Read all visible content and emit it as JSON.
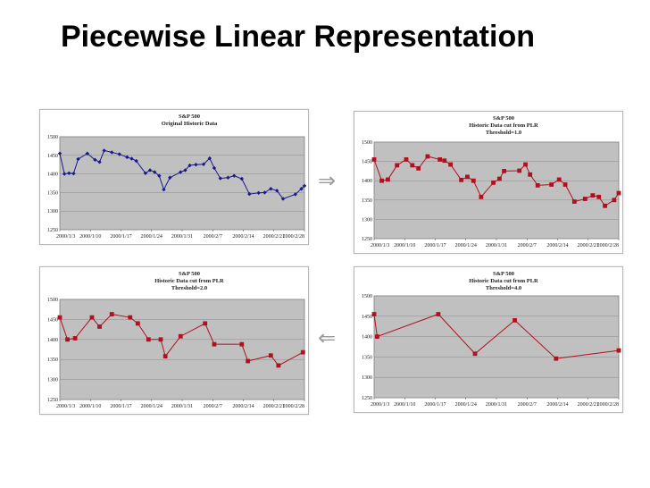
{
  "slide": {
    "title": "Piecewise Linear Representation"
  },
  "arrows": {
    "right": "⇒",
    "left": "⇐"
  },
  "chart_data": [
    {
      "type": "line",
      "title": "S&P 500",
      "subtitle": "Original Historic Data",
      "subtitle2": "",
      "categories": [
        "2000/1/3",
        "2000/1/10",
        "2000/1/17",
        "2000/1/24",
        "2000/1/31",
        "2000/2/7",
        "2000/2/14",
        "2000/2/21",
        "2000/2/28"
      ],
      "ylim": [
        1250,
        1500
      ],
      "yticks": [
        1250,
        1300,
        1350,
        1400,
        1450,
        1500
      ],
      "grid": true,
      "legend": "none",
      "series": [
        {
          "color": "#1a1a8c",
          "marker": "diamond",
          "x": [
            0,
            0.15,
            0.3,
            0.45,
            0.6,
            0.9,
            1.15,
            1.3,
            1.45,
            1.7,
            1.95,
            2.2,
            2.35,
            2.5,
            2.8,
            2.95,
            3.1,
            3.25,
            3.4,
            3.6,
            3.95,
            4.1,
            4.25,
            4.45,
            4.7,
            4.9,
            5.05,
            5.25,
            5.5,
            5.7,
            5.95,
            6.2,
            6.5,
            6.7,
            6.9,
            7.1,
            7.3,
            7.7,
            7.9,
            8.0
          ],
          "y": [
            1455,
            1400,
            1402,
            1401,
            1440,
            1455,
            1438,
            1432,
            1463,
            1458,
            1453,
            1445,
            1441,
            1435,
            1402,
            1410,
            1405,
            1395,
            1358,
            1390,
            1405,
            1410,
            1423,
            1425,
            1426,
            1442,
            1416,
            1388,
            1390,
            1395,
            1387,
            1346,
            1349,
            1350,
            1360,
            1355,
            1333,
            1345,
            1360,
            1368
          ]
        }
      ]
    },
    {
      "type": "line",
      "title": "S&P 500",
      "subtitle": "Historic  Data cut from PLR",
      "subtitle2": "Threshold=1.0",
      "categories": [
        "2000/1/3",
        "2000/1/10",
        "2000/1/17",
        "2000/1/24",
        "2000/1/31",
        "2000/2/7",
        "2000/2/14",
        "2000/2/21",
        "2000/2/28"
      ],
      "ylim": [
        1250,
        1500
      ],
      "yticks": [
        1250,
        1300,
        1350,
        1400,
        1450,
        1500
      ],
      "grid": true,
      "legend": "none",
      "series": [
        {
          "color": "#b01020",
          "marker": "square",
          "x": [
            0,
            0.25,
            0.45,
            0.75,
            1.05,
            1.25,
            1.45,
            1.75,
            2.15,
            2.3,
            2.5,
            2.85,
            3.05,
            3.25,
            3.5,
            3.9,
            4.1,
            4.25,
            4.75,
            4.95,
            5.1,
            5.35,
            5.8,
            6.05,
            6.25,
            6.55,
            6.9,
            7.15,
            7.35,
            7.55,
            7.85,
            8.0
          ],
          "y": [
            1455,
            1400,
            1403,
            1440,
            1455,
            1440,
            1432,
            1463,
            1455,
            1452,
            1442,
            1402,
            1410,
            1400,
            1358,
            1395,
            1405,
            1425,
            1426,
            1442,
            1416,
            1388,
            1390,
            1403,
            1390,
            1346,
            1353,
            1362,
            1358,
            1335,
            1350,
            1368
          ]
        }
      ]
    },
    {
      "type": "line",
      "title": "S&P 500",
      "subtitle": "Historic  Data cut from PLR",
      "subtitle2": "Threshold=2.0",
      "categories": [
        "2000/1/3",
        "2000/1/10",
        "2000/1/17",
        "2000/1/24",
        "2000/1/31",
        "2000/2/7",
        "2000/2/14",
        "2000/2/21",
        "2000/2/28"
      ],
      "ylim": [
        1250,
        1500
      ],
      "yticks": [
        1250,
        1300,
        1350,
        1400,
        1450,
        1500
      ],
      "grid": true,
      "legend": "none",
      "series": [
        {
          "color": "#b01020",
          "marker": "square",
          "x": [
            0,
            0.25,
            0.5,
            1.05,
            1.3,
            1.7,
            2.3,
            2.55,
            2.9,
            3.3,
            3.45,
            3.95,
            4.75,
            5.05,
            5.95,
            6.15,
            6.9,
            7.15,
            7.95
          ],
          "y": [
            1455,
            1400,
            1403,
            1455,
            1432,
            1463,
            1455,
            1440,
            1400,
            1400,
            1358,
            1408,
            1440,
            1388,
            1388,
            1346,
            1360,
            1335,
            1368
          ]
        }
      ]
    },
    {
      "type": "line",
      "title": "S&P 500",
      "subtitle": "Historic  Data cut from PLR",
      "subtitle2": "Threshold=4.0",
      "categories": [
        "2000/1/3",
        "2000/1/10",
        "2000/1/17",
        "2000/1/24",
        "2000/1/31",
        "2000/2/7",
        "2000/2/14",
        "2000/2/21",
        "2000/2/28"
      ],
      "ylim": [
        1250,
        1500
      ],
      "yticks": [
        1250,
        1300,
        1350,
        1400,
        1450,
        1500
      ],
      "grid": true,
      "legend": "none",
      "series": [
        {
          "color": "#b01020",
          "marker": "square",
          "x": [
            0,
            0.1,
            2.1,
            3.3,
            4.6,
            5.95,
            8.0
          ],
          "y": [
            1455,
            1400,
            1455,
            1358,
            1440,
            1346,
            1366
          ]
        }
      ]
    }
  ]
}
